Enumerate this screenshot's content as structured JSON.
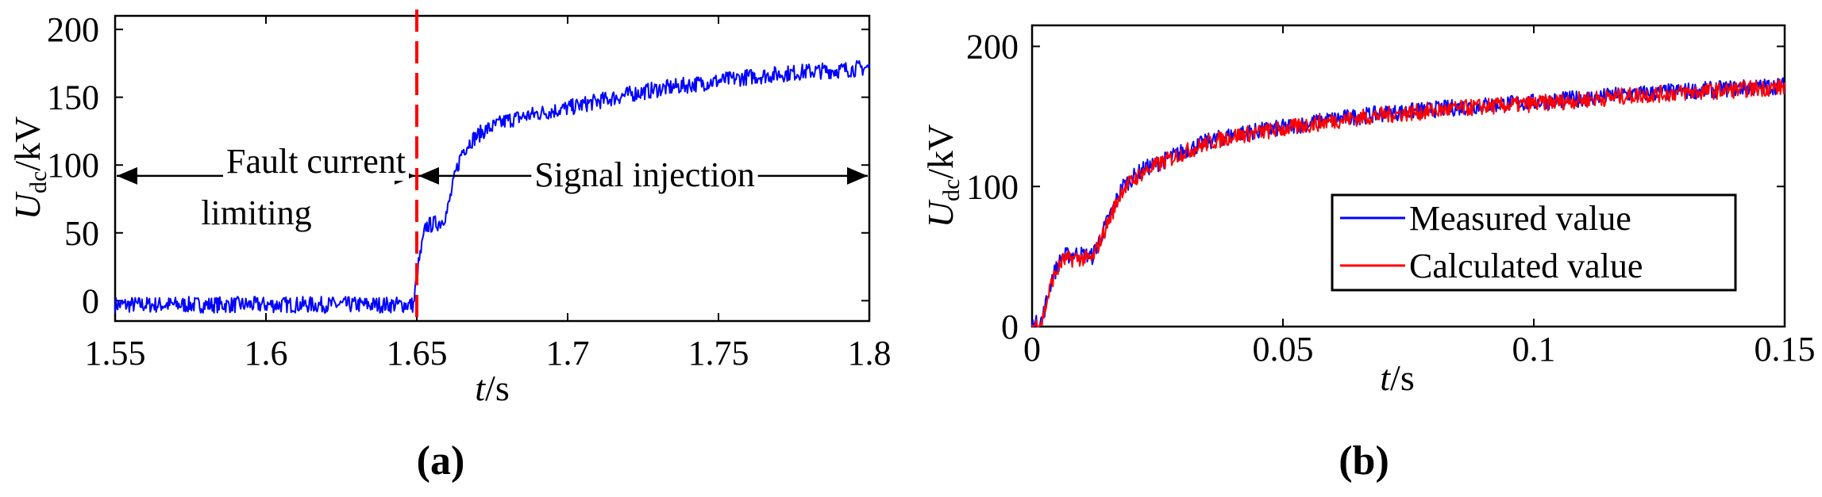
{
  "chart_data": [
    {
      "type": "line",
      "panel_label": "(a)",
      "xlabel_main": "t",
      "xlabel_unit": "/s",
      "ylabel_main": "U",
      "ylabel_sub": "dc",
      "ylabel_unit": "/kV",
      "xlim": [
        1.55,
        1.8
      ],
      "ylim": [
        -15,
        210
      ],
      "x_ticks": [
        "1.55",
        "1.6",
        "1.65",
        "1.7",
        "1.75",
        "1.8"
      ],
      "x_tick_values": [
        1.55,
        1.6,
        1.65,
        1.7,
        1.75,
        1.8
      ],
      "y_ticks": [
        "0",
        "50",
        "100",
        "150",
        "200"
      ],
      "y_tick_values": [
        0,
        50,
        100,
        150,
        200
      ],
      "series": [
        {
          "name": "Udc",
          "color": "#0000ff",
          "x": [
            1.55,
            1.649,
            1.65,
            1.653,
            1.658,
            1.66,
            1.663,
            1.665,
            1.668,
            1.672,
            1.68,
            1.69,
            1.7,
            1.71,
            1.72,
            1.73,
            1.74,
            1.75,
            1.76,
            1.77,
            1.78,
            1.79,
            1.8
          ],
          "y": [
            -3,
            -3,
            20,
            55,
            58,
            65,
            95,
            110,
            118,
            125,
            133,
            138,
            142,
            147,
            152,
            156,
            159,
            162,
            165,
            167,
            169,
            170,
            172
          ]
        }
      ],
      "divider": {
        "x": 1.65,
        "color": "#ff0000",
        "style": "dashed"
      },
      "annotations": [
        {
          "text": "Fault current",
          "x_range": [
            1.55,
            1.65
          ],
          "y": 92
        },
        {
          "text": "limiting"
        },
        {
          "text": "Signal injection",
          "x_range": [
            1.65,
            1.8
          ],
          "y": 92
        }
      ]
    },
    {
      "type": "line",
      "panel_label": "(b)",
      "xlabel_main": "t",
      "xlabel_unit": "/s",
      "ylabel_main": "U",
      "ylabel_sub": "dc",
      "ylabel_unit": "/kV",
      "xlim": [
        0,
        0.15
      ],
      "ylim": [
        0,
        215
      ],
      "x_ticks": [
        "0",
        "0.05",
        "0.1",
        "0.15"
      ],
      "x_tick_values": [
        0,
        0.05,
        0.1,
        0.15
      ],
      "y_ticks": [
        "0",
        "100",
        "200"
      ],
      "y_tick_values": [
        0,
        100,
        200
      ],
      "legend_position": "right",
      "series": [
        {
          "name": "Measured value",
          "color": "#0000ff",
          "x": [
            0,
            0.002,
            0.004,
            0.006,
            0.009,
            0.012,
            0.015,
            0.018,
            0.022,
            0.026,
            0.03,
            0.035,
            0.04,
            0.05,
            0.06,
            0.07,
            0.08,
            0.09,
            0.1,
            0.11,
            0.12,
            0.13,
            0.14,
            0.15
          ],
          "y": [
            0,
            5,
            35,
            50,
            52,
            50,
            75,
            100,
            112,
            118,
            125,
            132,
            137,
            142,
            148,
            152,
            155,
            158,
            160,
            163,
            166,
            168,
            170,
            172
          ]
        },
        {
          "name": "Calculated value",
          "color": "#ff0000",
          "x": [
            0,
            0.002,
            0.004,
            0.006,
            0.009,
            0.012,
            0.015,
            0.018,
            0.022,
            0.026,
            0.03,
            0.035,
            0.04,
            0.05,
            0.06,
            0.07,
            0.08,
            0.09,
            0.1,
            0.11,
            0.12,
            0.13,
            0.14,
            0.15
          ],
          "y": [
            0,
            4,
            33,
            47,
            49,
            48,
            73,
            98,
            110,
            117,
            124,
            131,
            136,
            141,
            147,
            151,
            154,
            157,
            159,
            162,
            165,
            167,
            169,
            171
          ]
        }
      ]
    }
  ]
}
